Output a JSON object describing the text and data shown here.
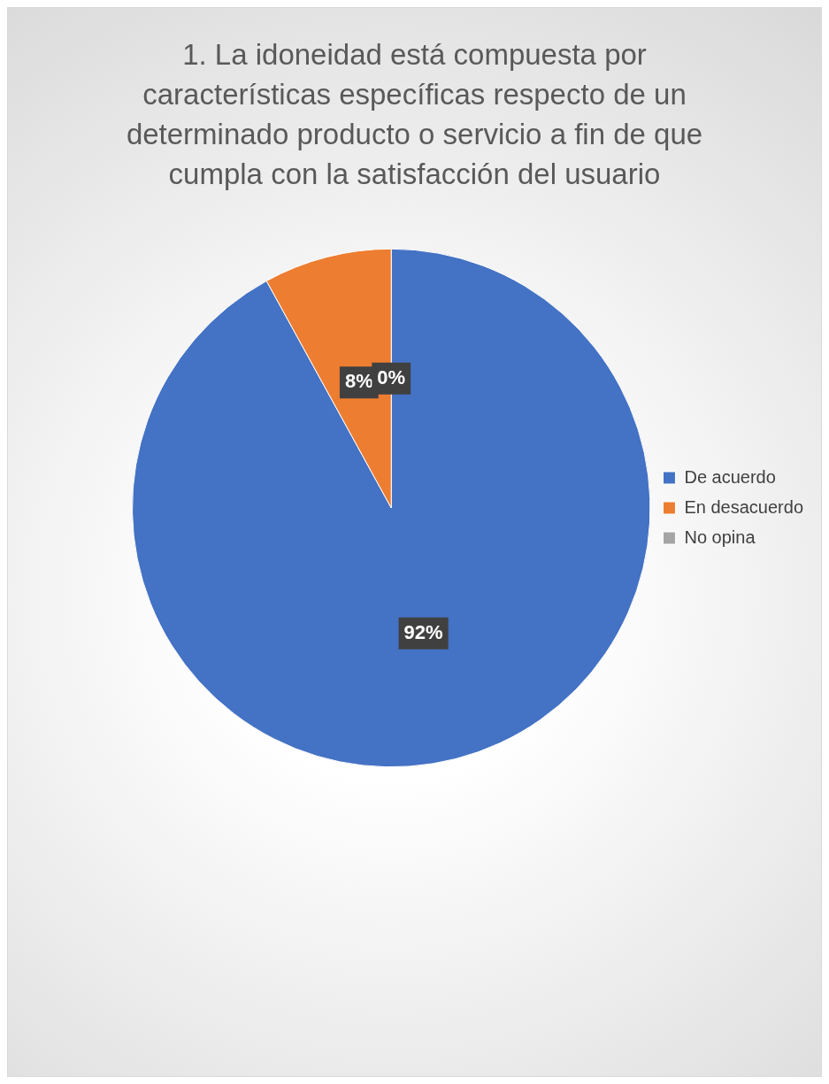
{
  "chart_data": {
    "type": "pie",
    "title": "1.  La idoneidad está compuesta por características específicas respecto de un determinado producto o servicio a fin de que cumpla con la satisfacción del usuario",
    "categories": [
      "De acuerdo",
      "En desacuerdo",
      "No opina"
    ],
    "values": [
      92,
      8,
      0
    ],
    "colors": [
      "#4472c4",
      "#ed7d31",
      "#a5a5a5"
    ],
    "value_labels": [
      "92%",
      "8%",
      "0%"
    ],
    "legend": "right"
  }
}
